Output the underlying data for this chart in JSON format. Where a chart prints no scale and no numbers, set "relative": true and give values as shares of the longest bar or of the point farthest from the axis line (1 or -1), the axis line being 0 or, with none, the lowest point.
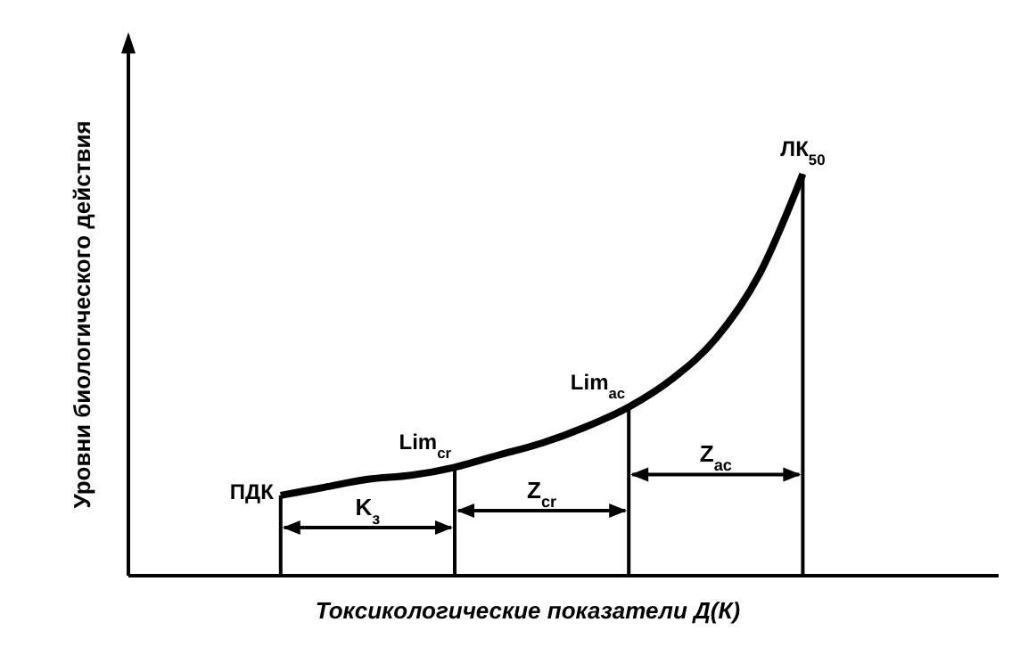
{
  "chart_data": {
    "type": "line",
    "relative": true,
    "xlabel": "Токсикологические показатели Д(К)",
    "ylabel": "Уровни биологического действия",
    "categories": [
      null,
      null,
      null,
      null,
      null,
      null,
      null,
      null,
      null,
      null,
      null,
      null,
      null,
      null,
      null,
      null,
      null,
      null,
      null,
      null
    ],
    "series": [
      {
        "color": "#000000",
        "values": [
          null,
          null,
          null,
          0.2,
          0.22,
          0.24,
          0.25,
          0.27,
          0.3,
          0.33,
          0.37,
          0.42,
          0.49,
          0.59,
          0.75,
          1.0,
          null,
          null,
          null,
          null
        ]
      }
    ],
    "annotations": [
      "ПДК",
      "Lim$_{cr}$",
      "Lim$_{ac}$",
      "ЛК$_{50}$",
      "K$_{з}$",
      "Z$_{cr}$",
      "Z$_{ac}$"
    ],
    "grid": false,
    "legend": false,
    "marker": "none",
    "line_style": "solid"
  }
}
